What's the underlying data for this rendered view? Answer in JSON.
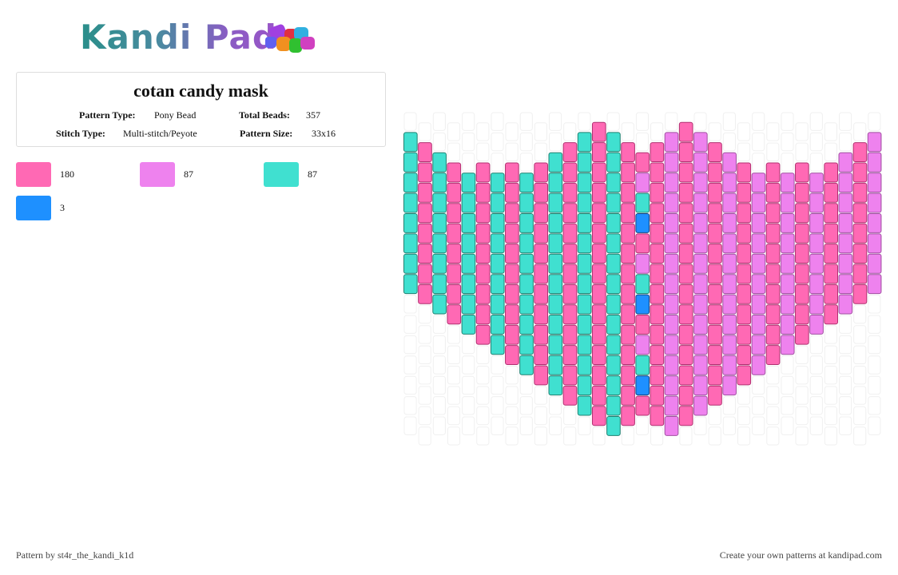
{
  "header": {
    "logo": "Kandi Pad"
  },
  "pattern": {
    "title": "cotan candy mask",
    "details": [
      {
        "label": "Pattern Type:",
        "value": "Pony Bead"
      },
      {
        "label": "Total Beads:",
        "value": "357"
      },
      {
        "label": "Stitch Type:",
        "value": "Multi-stitch/Peyote"
      },
      {
        "label": "Pattern Size:",
        "value": "33x16"
      }
    ]
  },
  "colors": [
    {
      "color": "#ff69b4",
      "count": 180
    },
    {
      "color": "#ee82ee",
      "count": 87
    },
    {
      "color": "#40e0d0",
      "count": 87
    },
    {
      "color": "#1e90ff",
      "count": 3
    }
  ],
  "footer": {
    "credit": "Pattern by st4r_the_kandi_k1d",
    "promo": "Create your own patterns at kandipad.com"
  }
}
